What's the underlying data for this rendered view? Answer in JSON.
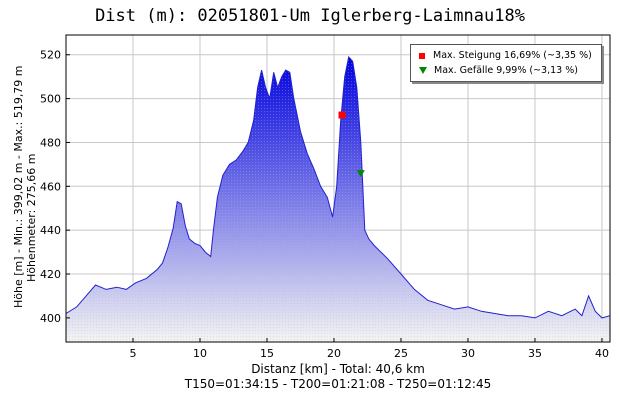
{
  "title": "Dist (m): 02051801-Um Iglerberg-Laimnau18%",
  "ylabel_lines": [
    "Höhe [m] - Min.: 399,02 m - Max.: 519,79 m",
    "Höhenmeter: 275,66 m"
  ],
  "xlabel": "Distanz [km] - Total: 40,6 km",
  "times": "T150=01:34:15 - T200=01:21:08 - T250=01:12:45",
  "legend": {
    "max_climb": "Max. Steigung 16,69% (~3,35 %)",
    "max_descent": "Max. Gefälle 9,99% (~3,13 %)"
  },
  "chart_data": {
    "type": "area",
    "title": "Dist (m): 02051801-Um Iglerberg-Laimnau18%",
    "xlabel": "Distanz [km] - Total: 40,6 km",
    "ylabel": "Höhe [m] - Min.: 399,02 m - Max.: 519,79 m",
    "xlim": [
      0,
      40.6
    ],
    "ylim": [
      389,
      529
    ],
    "xticks": [
      5,
      10,
      15,
      20,
      25,
      30,
      35,
      40
    ],
    "yticks": [
      400,
      420,
      440,
      460,
      480,
      500,
      520
    ],
    "grid": true,
    "colors": {
      "fill_top": "#0000e0",
      "fill_bottom": "#f4f4f4",
      "line": "#2222cc"
    },
    "x": [
      0,
      0.8,
      1.5,
      2.2,
      3.0,
      3.8,
      4.5,
      5.2,
      6.0,
      6.8,
      7.2,
      7.6,
      8.0,
      8.3,
      8.6,
      8.9,
      9.2,
      9.6,
      10.0,
      10.4,
      10.8,
      11.0,
      11.3,
      11.7,
      12.2,
      12.7,
      13.2,
      13.6,
      14.0,
      14.3,
      14.6,
      14.9,
      15.2,
      15.5,
      15.8,
      16.1,
      16.4,
      16.7,
      17.0,
      17.5,
      18.0,
      18.5,
      19.0,
      19.5,
      19.9,
      20.2,
      20.5,
      20.8,
      21.1,
      21.4,
      21.7,
      22.0,
      22.3,
      22.6,
      23.0,
      23.5,
      24.0,
      25.0,
      26.0,
      27.0,
      28.0,
      29.0,
      30.0,
      31.0,
      32.0,
      33.0,
      34.0,
      35.0,
      36.0,
      37.0,
      38.0,
      38.5,
      39.0,
      39.5,
      40.0,
      40.6
    ],
    "y": [
      402,
      405,
      410,
      415,
      413,
      414,
      413,
      416,
      418,
      422,
      425,
      432,
      441,
      453,
      452,
      442,
      436,
      434,
      433,
      430,
      428,
      440,
      455,
      465,
      470,
      472,
      476,
      480,
      490,
      505,
      513,
      505,
      500,
      512,
      505,
      510,
      513,
      512,
      500,
      485,
      475,
      468,
      460,
      455,
      446,
      460,
      490,
      510,
      519,
      517,
      505,
      480,
      440,
      436,
      433,
      430,
      427,
      420,
      413,
      408,
      406,
      404,
      405,
      403,
      402,
      401,
      401,
      400,
      403,
      401,
      404,
      401,
      410,
      403,
      400,
      401
    ],
    "markers": [
      {
        "label": "Max. Steigung 16,69% (~3,35 %)",
        "shape": "square",
        "color": "#ff0000",
        "x": 20.6,
        "y": 492.5
      },
      {
        "label": "Max. Gefälle 9,99% (~3,13 %)",
        "shape": "triangle-down",
        "color": "#008800",
        "x": 22.0,
        "y": 466
      }
    ],
    "legend_position": "top-right"
  }
}
